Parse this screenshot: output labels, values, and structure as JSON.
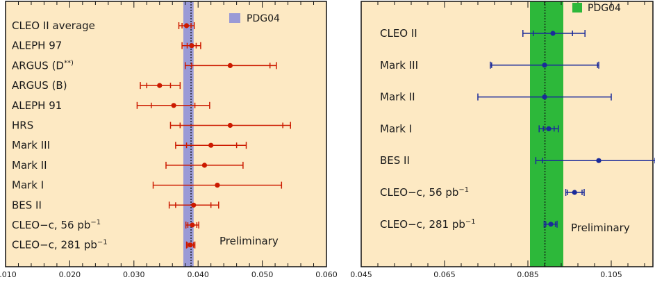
{
  "chart_data": [
    {
      "type": "scatter",
      "title": "",
      "xlabel": "",
      "ylabel": "",
      "xlim": [
        0.01,
        0.06
      ],
      "x_ticks": [
        "0.010",
        "0.020",
        "0.030",
        "0.040",
        "0.050",
        "0.060"
      ],
      "x_tick_values": [
        0.01,
        0.02,
        0.03,
        0.04,
        0.05,
        0.06
      ],
      "grid": false,
      "band": {
        "label": "PDG04",
        "center": 0.0385,
        "low": 0.0377,
        "high": 0.0393,
        "color": "#9a9ad6"
      },
      "reference_line": 0.0389,
      "point_color": "#cc1a00",
      "annotation": "Preliminary",
      "points": [
        {
          "label": "CLEO II average",
          "sup": "",
          "x": 0.0382,
          "stat_low": 0.0375,
          "stat_high": 0.0389,
          "tot_low": 0.037,
          "tot_high": 0.0394
        },
        {
          "label": "ALEPH 97",
          "sup": "",
          "x": 0.039,
          "stat_low": 0.0383,
          "stat_high": 0.0397,
          "tot_low": 0.0375,
          "tot_high": 0.0404
        },
        {
          "label": "ARGUS (D",
          "sup": "**)",
          "x": 0.045,
          "stat_low": 0.039,
          "stat_high": 0.0512,
          "tot_low": 0.038,
          "tot_high": 0.0522
        },
        {
          "label": "ARGUS (B)",
          "sup": "",
          "x": 0.034,
          "stat_low": 0.032,
          "stat_high": 0.0357,
          "tot_low": 0.031,
          "tot_high": 0.0372
        },
        {
          "label": "ALEPH 91",
          "sup": "",
          "x": 0.0362,
          "stat_low": 0.0327,
          "stat_high": 0.0395,
          "tot_low": 0.0305,
          "tot_high": 0.0418
        },
        {
          "label": "HRS",
          "sup": "",
          "x": 0.045,
          "stat_low": 0.0372,
          "stat_high": 0.0532,
          "tot_low": 0.0357,
          "tot_high": 0.0544
        },
        {
          "label": "Mark III",
          "sup": "",
          "x": 0.042,
          "stat_low": 0.0382,
          "stat_high": 0.046,
          "tot_low": 0.0365,
          "tot_high": 0.0475
        },
        {
          "label": "Mark II",
          "sup": "",
          "x": 0.041,
          "stat_low": 0.035,
          "stat_high": 0.047,
          "tot_low": 0.035,
          "tot_high": 0.047
        },
        {
          "label": "Mark I",
          "sup": "",
          "x": 0.043,
          "stat_low": 0.033,
          "stat_high": 0.053,
          "tot_low": 0.033,
          "tot_high": 0.053
        },
        {
          "label": "BES II",
          "sup": "",
          "x": 0.0393,
          "stat_low": 0.0365,
          "stat_high": 0.042,
          "tot_low": 0.0355,
          "tot_high": 0.0432
        },
        {
          "label": "CLEO−c, 56 pb",
          "sup": "−1",
          "x": 0.0391,
          "stat_low": 0.0384,
          "stat_high": 0.0398,
          "tot_low": 0.0381,
          "tot_high": 0.0401
        },
        {
          "label": "CLEO−c, 281 pb",
          "sup": "−1",
          "x": 0.0388,
          "stat_low": 0.0384,
          "stat_high": 0.0393,
          "tot_low": 0.0382,
          "tot_high": 0.0395
        }
      ]
    },
    {
      "type": "scatter",
      "title": "",
      "xlabel": "",
      "ylabel": "",
      "xlim": [
        0.045,
        0.115
      ],
      "x_ticks": [
        "0.045",
        "0.065",
        "0.085",
        "0.105"
      ],
      "x_tick_values": [
        0.045,
        0.065,
        0.085,
        0.105
      ],
      "grid": false,
      "band": {
        "label": "PDG04",
        "center": 0.0895,
        "low": 0.0855,
        "high": 0.0935,
        "color": "#2db83a"
      },
      "reference_line": 0.0891,
      "point_color": "#1a2a9a",
      "annotation": "Preliminary",
      "points": [
        {
          "label": "CLEO II",
          "sup": "",
          "x": 0.091,
          "stat_low": 0.0863,
          "stat_high": 0.0957,
          "tot_low": 0.0838,
          "tot_high": 0.0987
        },
        {
          "label": "Mark III",
          "sup": "",
          "x": 0.089,
          "stat_low": 0.0763,
          "stat_high": 0.1017,
          "tot_low": 0.076,
          "tot_high": 0.102
        },
        {
          "label": "Mark II",
          "sup": "",
          "x": 0.089,
          "stat_low": 0.073,
          "stat_high": 0.105,
          "tot_low": 0.073,
          "tot_high": 0.105
        },
        {
          "label": "Mark I",
          "sup": "",
          "x": 0.09,
          "stat_low": 0.0887,
          "stat_high": 0.0913,
          "tot_low": 0.0877,
          "tot_high": 0.0923
        },
        {
          "label": "BES II",
          "sup": "",
          "x": 0.102,
          "stat_low": 0.0885,
          "stat_high": 0.1155,
          "tot_low": 0.0869,
          "tot_high": 0.117
        },
        {
          "label": "CLEO−c, 56 pb",
          "sup": "−1",
          "x": 0.0962,
          "stat_low": 0.0945,
          "stat_high": 0.098,
          "tot_low": 0.0941,
          "tot_high": 0.0985
        },
        {
          "label": "CLEO−c, 281 pb",
          "sup": "−1",
          "x": 0.0905,
          "stat_low": 0.0893,
          "stat_high": 0.0916,
          "tot_low": 0.0889,
          "tot_high": 0.092
        }
      ]
    }
  ]
}
